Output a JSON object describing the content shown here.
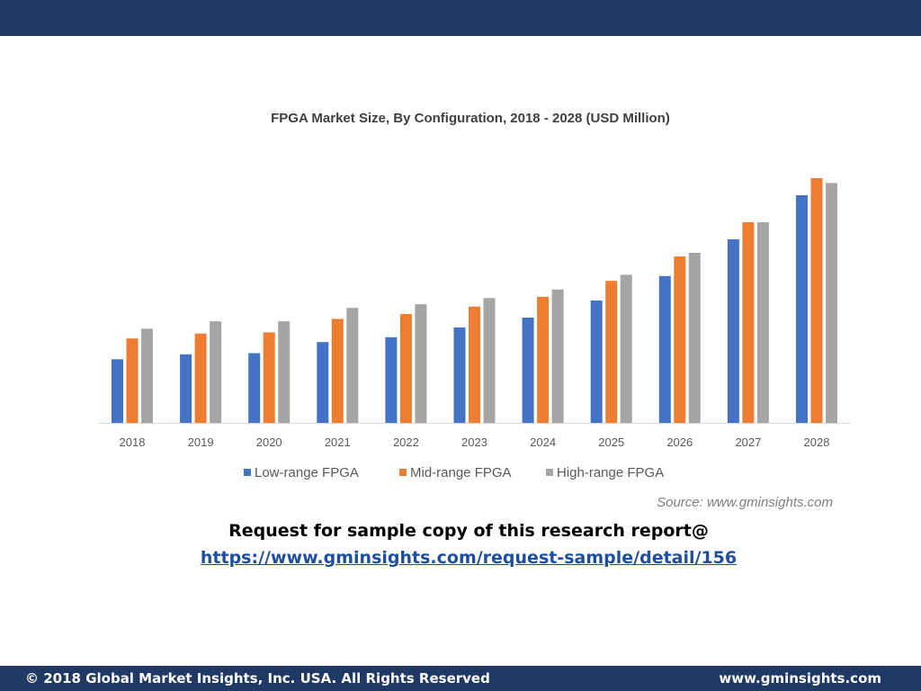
{
  "chart_data": {
    "type": "bar",
    "title": "FPGA Market Size, By Configuration, 2018 - 2028 (USD Million)",
    "categories": [
      "2018",
      "2019",
      "2020",
      "2021",
      "2022",
      "2023",
      "2024",
      "2025",
      "2026",
      "2027",
      "2028"
    ],
    "series": [
      {
        "name": "Low-range FPGA",
        "color": "#4472c4",
        "values": [
          26,
          28,
          28.5,
          33,
          35,
          39,
          43,
          50,
          60,
          75,
          93
        ]
      },
      {
        "name": "Mid-range FPGA",
        "color": "#ed7d31",
        "values": [
          34.5,
          36.5,
          37,
          42.5,
          44.5,
          47.5,
          51.5,
          58,
          68,
          82,
          100
        ]
      },
      {
        "name": "High-range FPGA",
        "color": "#a5a5a5",
        "values": [
          38.5,
          41.5,
          41.5,
          47,
          48.5,
          51,
          54.5,
          60.5,
          69.5,
          82,
          98
        ]
      }
    ],
    "xlabel": "",
    "ylabel": "",
    "ylim": [
      0,
      100
    ],
    "grid": false,
    "legend_position": "bottom",
    "source": "Source:  www.gminsights.com"
  },
  "request": {
    "text": "Request for sample copy of this research report@",
    "link": "https://www.gminsights.com/request-sample/detail/156"
  },
  "footer": {
    "copyright": "© 2018 Global Market Insights, Inc. USA. All Rights Reserved",
    "website": "www.gminsights.com"
  },
  "colors": {
    "bar_background": "#1f3864",
    "link": "#1f4e9e"
  }
}
